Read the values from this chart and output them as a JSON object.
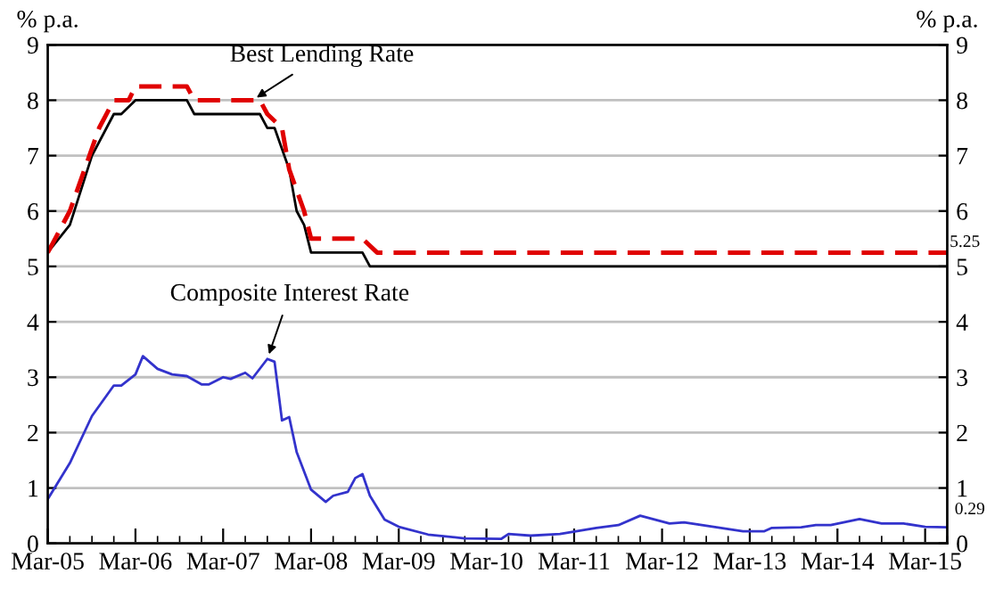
{
  "chart_data": {
    "type": "line",
    "ylabel": "% p.a.",
    "y2label": "% p.a.",
    "xlim": [
      "2005-03",
      "2015-06"
    ],
    "xticks": [
      {
        "value": "2005-03",
        "label": "Mar-05"
      },
      {
        "value": "2005-06",
        "label": null
      },
      {
        "value": "2005-09",
        "label": null
      },
      {
        "value": "2005-12",
        "label": null
      },
      {
        "value": "2006-03",
        "label": "Mar-06"
      },
      {
        "value": "2006-06",
        "label": null
      },
      {
        "value": "2006-09",
        "label": null
      },
      {
        "value": "2006-12",
        "label": null
      },
      {
        "value": "2007-03",
        "label": "Mar-07"
      },
      {
        "value": "2007-06",
        "label": null
      },
      {
        "value": "2007-09",
        "label": null
      },
      {
        "value": "2007-12",
        "label": null
      },
      {
        "value": "2008-03",
        "label": "Mar-08"
      },
      {
        "value": "2008-06",
        "label": null
      },
      {
        "value": "2008-09",
        "label": null
      },
      {
        "value": "2008-12",
        "label": null
      },
      {
        "value": "2009-03",
        "label": "Mar-09"
      },
      {
        "value": "2009-06",
        "label": null
      },
      {
        "value": "2009-09",
        "label": null
      },
      {
        "value": "2009-12",
        "label": null
      },
      {
        "value": "2010-03",
        "label": "Mar-10"
      },
      {
        "value": "2010-06",
        "label": null
      },
      {
        "value": "2010-09",
        "label": null
      },
      {
        "value": "2010-12",
        "label": null
      },
      {
        "value": "2011-03",
        "label": "Mar-11"
      },
      {
        "value": "2011-06",
        "label": null
      },
      {
        "value": "2011-09",
        "label": null
      },
      {
        "value": "2011-12",
        "label": null
      },
      {
        "value": "2012-03",
        "label": "Mar-12"
      },
      {
        "value": "2012-06",
        "label": null
      },
      {
        "value": "2012-09",
        "label": null
      },
      {
        "value": "2012-12",
        "label": null
      },
      {
        "value": "2013-03",
        "label": "Mar-13"
      },
      {
        "value": "2013-06",
        "label": null
      },
      {
        "value": "2013-09",
        "label": null
      },
      {
        "value": "2013-12",
        "label": null
      },
      {
        "value": "2014-03",
        "label": "Mar-14"
      },
      {
        "value": "2014-06",
        "label": null
      },
      {
        "value": "2014-09",
        "label": null
      },
      {
        "value": "2014-12",
        "label": null
      },
      {
        "value": "2015-03",
        "label": "Mar-15"
      },
      {
        "value": "2015-06",
        "label": null
      }
    ],
    "ylim": [
      0,
      9
    ],
    "yticks": [
      0,
      1,
      2,
      3,
      4,
      5,
      6,
      7,
      8,
      9
    ],
    "y2lim": [
      0,
      9
    ],
    "y2ticks": [
      0,
      1,
      2,
      3,
      4,
      5,
      6,
      7,
      8,
      9
    ],
    "grid": "y",
    "legend": false,
    "series": [
      {
        "color": "#000000",
        "line_style": "solid",
        "x": [
          "2005-03",
          "2005-06",
          "2005-09",
          "2005-12",
          "2006-01",
          "2006-03",
          "2006-10",
          "2006-11",
          "2007-08",
          "2007-09",
          "2007-10",
          "2007-12",
          "2008-01",
          "2008-02",
          "2008-03",
          "2008-10",
          "2008-11",
          "2015-06"
        ],
        "values": [
          5.25,
          5.75,
          7.0,
          7.75,
          7.75,
          8.0,
          8.0,
          7.75,
          7.75,
          7.5,
          7.5,
          6.75,
          6.0,
          5.75,
          5.25,
          5.25,
          5.0,
          5.0
        ]
      },
      {
        "color": "#e00000",
        "line_style": "dashed",
        "x": [
          "2005-03",
          "2005-06",
          "2005-10",
          "2005-12",
          "2006-02",
          "2006-03",
          "2006-10",
          "2006-11",
          "2007-08",
          "2007-09",
          "2007-11",
          "2007-12",
          "2008-02",
          "2008-03",
          "2008-10",
          "2008-12",
          "2015-06"
        ],
        "values": [
          5.25,
          6.0,
          7.5,
          8.0,
          8.0,
          8.25,
          8.25,
          8.0,
          8.0,
          7.75,
          7.5,
          6.75,
          6.0,
          5.5,
          5.5,
          5.25,
          5.25
        ]
      },
      {
        "color": "#3333cc",
        "line_style": "solid",
        "x": [
          "2005-03",
          "2005-06",
          "2005-09",
          "2005-12",
          "2006-01",
          "2006-03",
          "2006-04",
          "2006-06",
          "2006-08",
          "2006-10",
          "2006-12",
          "2007-01",
          "2007-03",
          "2007-04",
          "2007-06",
          "2007-07",
          "2007-09",
          "2007-10",
          "2007-11",
          "2007-12",
          "2008-01",
          "2008-03",
          "2008-05",
          "2008-06",
          "2008-08",
          "2008-09",
          "2008-10",
          "2008-11",
          "2009-01",
          "2009-03",
          "2009-07",
          "2009-12",
          "2010-05",
          "2010-06",
          "2010-09",
          "2011-01",
          "2011-06",
          "2011-09",
          "2011-12",
          "2012-04",
          "2012-06",
          "2012-09",
          "2013-02",
          "2013-05",
          "2013-06",
          "2013-10",
          "2013-12",
          "2014-02",
          "2014-06",
          "2014-09",
          "2014-12",
          "2015-03",
          "2015-06"
        ],
        "values": [
          0.8,
          1.45,
          2.3,
          2.85,
          2.85,
          3.05,
          3.38,
          3.15,
          3.05,
          3.02,
          2.87,
          2.87,
          3.0,
          2.97,
          3.08,
          2.98,
          3.33,
          3.28,
          2.22,
          2.28,
          1.65,
          0.97,
          0.75,
          0.86,
          0.93,
          1.18,
          1.25,
          0.86,
          0.43,
          0.3,
          0.16,
          0.09,
          0.08,
          0.17,
          0.14,
          0.17,
          0.28,
          0.33,
          0.5,
          0.36,
          0.38,
          0.32,
          0.22,
          0.22,
          0.28,
          0.29,
          0.33,
          0.33,
          0.44,
          0.36,
          0.36,
          0.3,
          0.29
        ]
      }
    ],
    "annotations": [
      {
        "text": "Best Lending Rate",
        "x": "2007-07",
        "y": 8.0
      },
      {
        "text": "Composite Interest Rate",
        "x": "2007-09",
        "y": 3.33
      },
      {
        "text": "5.25",
        "x": "2015-06",
        "y": 5.25
      },
      {
        "text": "0.29",
        "x": "2015-06",
        "y": 0.29
      }
    ]
  }
}
